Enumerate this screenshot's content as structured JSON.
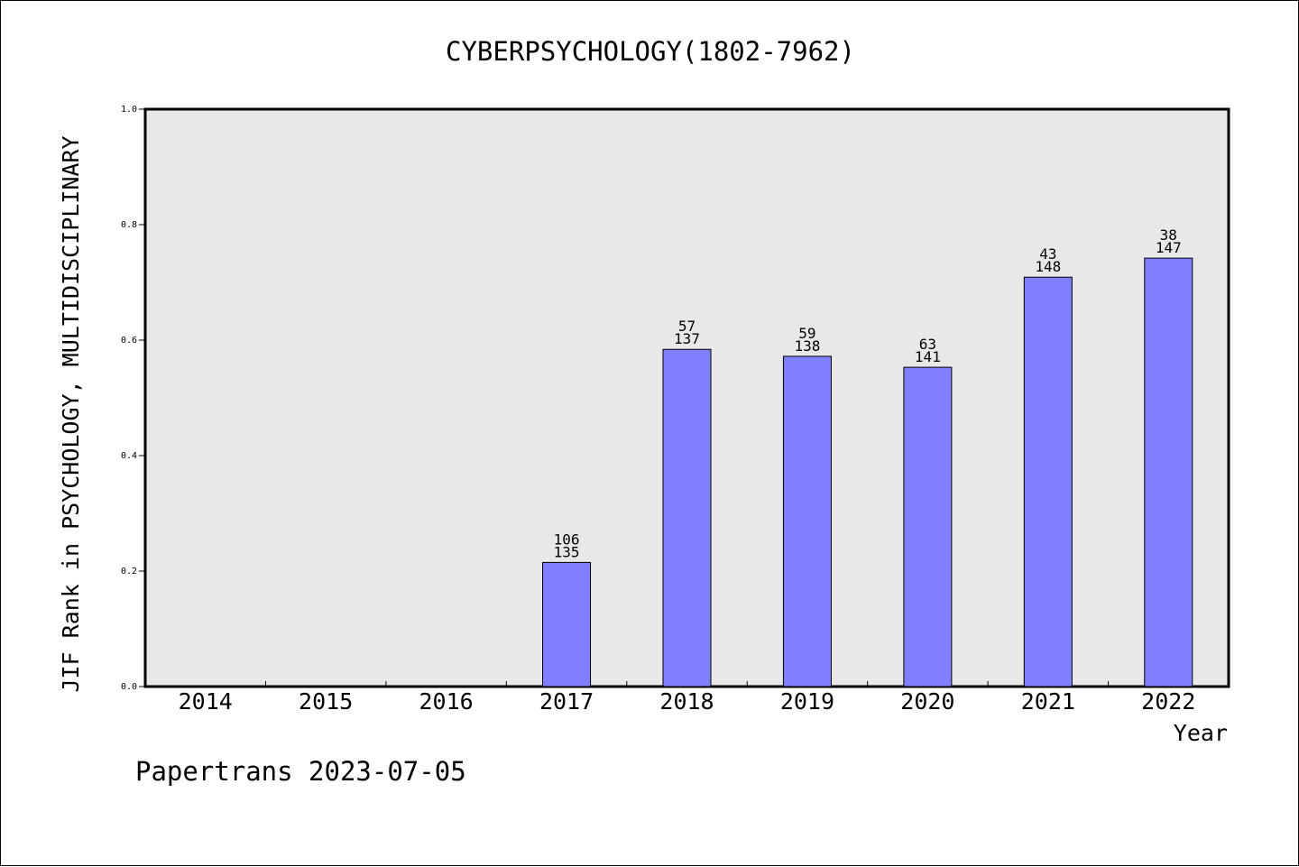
{
  "chart_data": {
    "type": "bar",
    "title": "CYBERPSYCHOLOGY(1802-7962)",
    "xlabel": "Year",
    "ylabel": "JIF Rank in PSYCHOLOGY, MULTIDISCIPLINARY",
    "ylim": [
      0,
      1.0
    ],
    "yticks": [
      "0.0",
      "0.2",
      "0.4",
      "0.6",
      "0.8",
      "1.0"
    ],
    "categories": [
      "2014",
      "2015",
      "2016",
      "2017",
      "2018",
      "2019",
      "2020",
      "2021",
      "2022"
    ],
    "values": [
      null,
      null,
      null,
      0.215,
      0.584,
      0.572,
      0.553,
      0.709,
      0.742
    ],
    "rank_labels": [
      "",
      "",
      "",
      "106",
      "57",
      "59",
      "63",
      "43",
      "38"
    ],
    "total_labels": [
      "",
      "",
      "",
      "135",
      "137",
      "138",
      "141",
      "148",
      "147"
    ],
    "grid": false,
    "colors": {
      "bar": "#8080ff",
      "plot_bg": "#e8e8e8",
      "axis": "#000000"
    }
  },
  "footer": {
    "text": "Papertrans 2023-07-05"
  }
}
